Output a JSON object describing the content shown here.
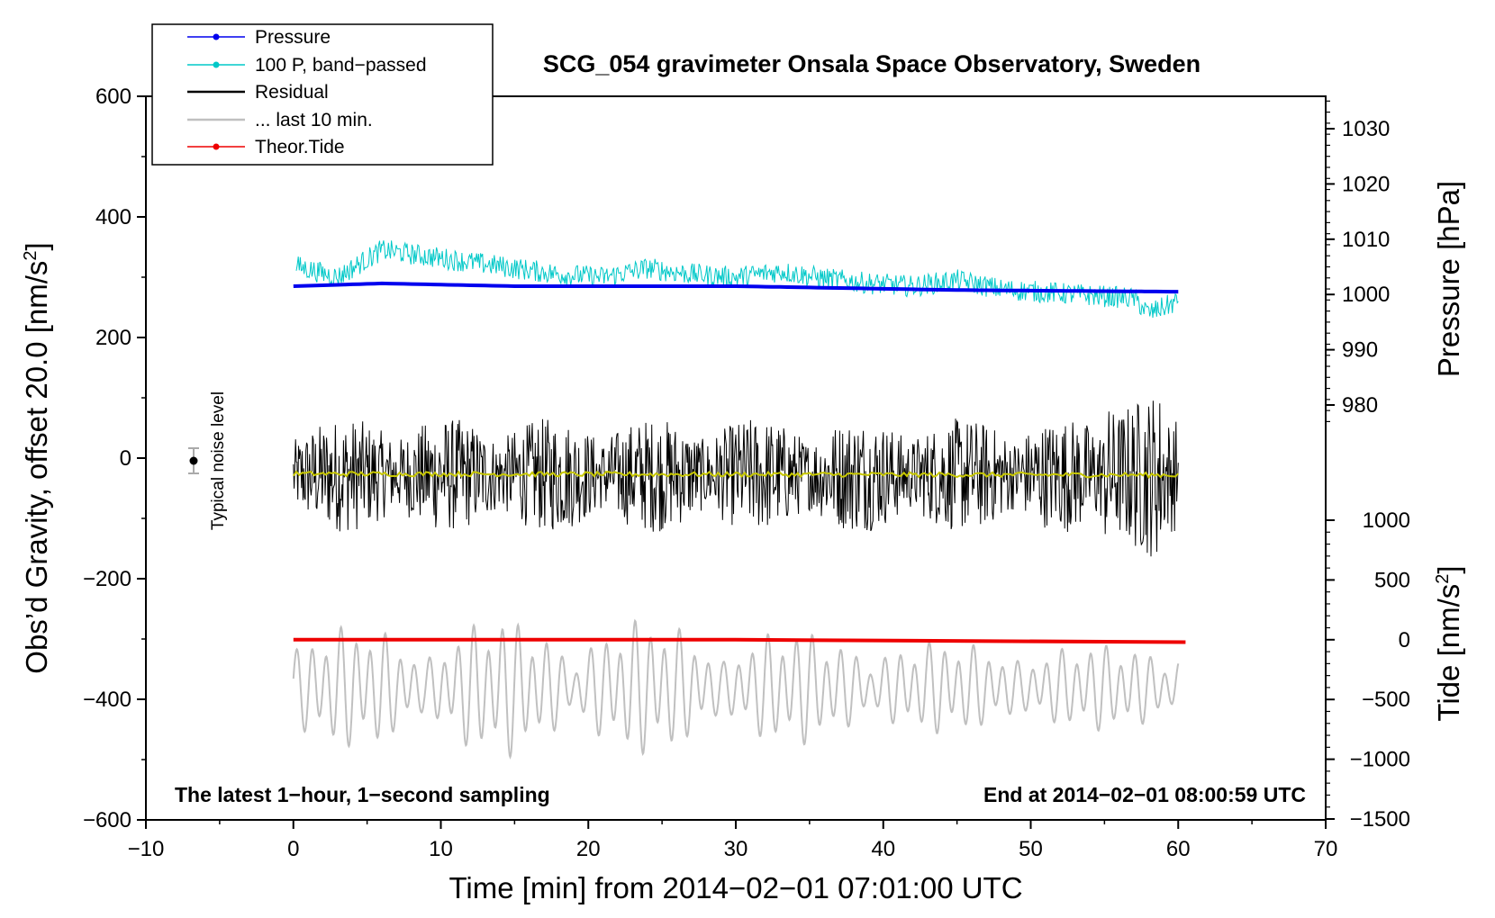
{
  "chart_data": {
    "type": "line",
    "title": "SCG_054 gravimeter Onsala Space Observatory, Sweden",
    "xlabel": "Time [min] from 2014−02−01 07:01:00 UTC",
    "ylabel": "Obs’d Gravity, offset 20.0 [nm/s",
    "ylabel_sup": "2",
    "ylabel_close": "]",
    "y2_upper_label": "Pressure [hPa]",
    "y2_lower_label": "Tide [nm/s",
    "y2_lower_label_sup": "2",
    "y2_lower_label_close": "]",
    "xlim": [
      -10,
      70
    ],
    "ylim": [
      -600,
      600
    ],
    "x_ticks": [
      "−10",
      "0",
      "10",
      "20",
      "30",
      "40",
      "50",
      "60",
      "70"
    ],
    "y_ticks": [
      "600",
      "400",
      "200",
      "0",
      "−200",
      "−400",
      "−600"
    ],
    "pressure_ticks": [
      "1030",
      "1020",
      "1010",
      "1000",
      "990",
      "980"
    ],
    "pressure_range": [
      980,
      1030
    ],
    "tide_ticks": [
      "1000",
      "500",
      "0",
      "−500",
      "−1000",
      "−1500"
    ],
    "tide_range": [
      -1500,
      1000
    ],
    "legend": [
      {
        "label": "Pressure",
        "color": "#0000ee",
        "marker": true
      },
      {
        "label": "100 P, band−passed",
        "color": "#00c8c8",
        "marker": true
      },
      {
        "label": "Residual",
        "color": "#000000",
        "marker": false
      },
      {
        "label": "... last 10 min.",
        "color": "#c0c0c0",
        "marker": false
      },
      {
        "label": "Theor.Tide",
        "color": "#ee0000",
        "marker": true
      }
    ],
    "annotation_left": "The latest 1−hour, 1−second sampling",
    "annotation_right": "End at 2014−02−01 08:00:59 UTC",
    "noise_label": "Typical noise level",
    "noise_point": {
      "x": -7,
      "y": 0,
      "err": 20
    },
    "series": [
      {
        "name": "Pressure",
        "color": "#0000ee",
        "axis": "pressure",
        "x": [
          0,
          6,
          15,
          30,
          45,
          60
        ],
        "values": [
          1001.5,
          1002.0,
          1001.5,
          1001.5,
          1000.8,
          1000.5
        ]
      },
      {
        "name": "100 P, band−passed",
        "color": "#00c8c8",
        "axis": "gravity",
        "x": [
          0,
          3,
          6,
          9,
          12,
          15,
          18,
          21,
          24,
          27,
          30,
          33,
          36,
          39,
          42,
          45,
          48,
          51,
          54,
          57,
          58,
          60
        ],
        "values": [
          320,
          300,
          345,
          335,
          325,
          315,
          305,
          300,
          315,
          305,
          300,
          310,
          298,
          290,
          285,
          295,
          280,
          275,
          270,
          265,
          240,
          260
        ]
      },
      {
        "name": "Residual",
        "color": "#000000",
        "axis": "gravity",
        "x": [
          0,
          60
        ],
        "values": [
          -28,
          -28
        ],
        "noise_amplitude": 95
      },
      {
        "name": "Residual smoothed",
        "color": "#c8c800",
        "axis": "gravity",
        "x": [
          0,
          60
        ],
        "values": [
          -26,
          -28
        ]
      },
      {
        "name": "... last 10 min.",
        "color": "#c0c0c0",
        "axis": "tide",
        "x": [
          0,
          60
        ],
        "values": [
          -400,
          -400
        ],
        "amplitude": 600
      },
      {
        "name": "Theor.Tide",
        "color": "#ee0000",
        "axis": "tide",
        "x": [
          0,
          30,
          60.5
        ],
        "values": [
          0,
          0,
          -20
        ]
      }
    ]
  }
}
